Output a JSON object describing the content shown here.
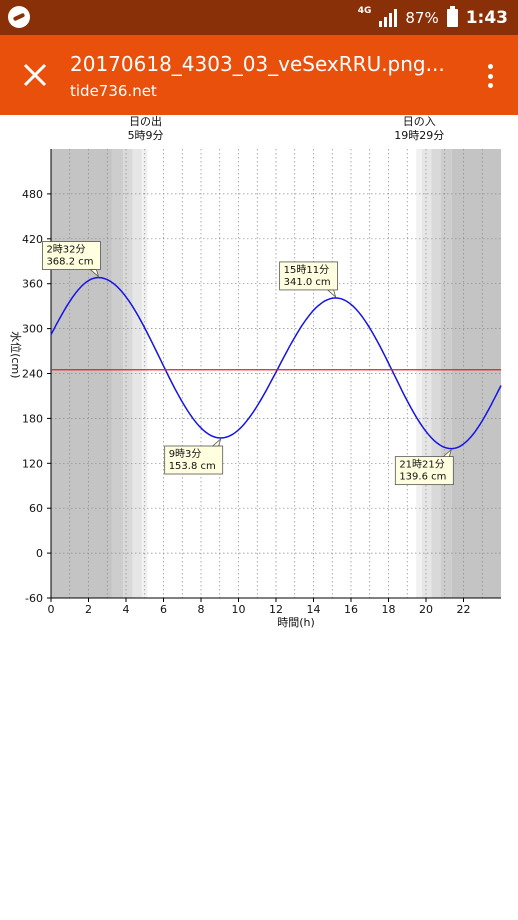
{
  "statusbar": {
    "network": "4G",
    "battery": "87%",
    "time": "1:43"
  },
  "appbar": {
    "title": "20170618_4303_03_veSexRRU.png...",
    "subtitle": "tide736.net"
  },
  "icons": {
    "close": "close-icon",
    "menu": "more-vert-icon",
    "app": "app-logo-icon",
    "battery": "battery-icon",
    "signal": "signal-icon"
  },
  "chart_data": {
    "type": "line",
    "xlabel": "時間(h)",
    "ylabel": "水位(cm)",
    "xlim": [
      0,
      24
    ],
    "ylim": [
      -60,
      540
    ],
    "xticks": [
      0,
      2,
      4,
      6,
      8,
      10,
      12,
      14,
      16,
      18,
      20,
      22
    ],
    "yticks": [
      -60,
      0,
      60,
      120,
      180,
      240,
      300,
      360,
      420,
      480
    ],
    "grid": true,
    "sunrise": {
      "label": "日の出",
      "time": "5時9分",
      "hour": 5.15
    },
    "sunset": {
      "label": "日の入",
      "time": "19時29分",
      "hour": 19.48
    },
    "reference_level": 245,
    "series": [
      {
        "color": "#1414e6",
        "x": [
          0,
          2.53,
          9.05,
          15.18,
          21.35,
          24
        ],
        "y": [
          292,
          368.2,
          153.8,
          341.0,
          139.6,
          224
        ]
      }
    ],
    "annotations": [
      {
        "time": "2時32分",
        "value": "368.2 cm",
        "x": 2.53,
        "y": 368.2,
        "side": "above"
      },
      {
        "time": "9時3分",
        "value": "153.8 cm",
        "x": 9.05,
        "y": 153.8,
        "side": "below"
      },
      {
        "time": "15時11分",
        "value": "341.0 cm",
        "x": 15.18,
        "y": 341.0,
        "side": "above"
      },
      {
        "time": "21時21分",
        "value": "139.6 cm",
        "x": 21.35,
        "y": 139.6,
        "side": "below"
      }
    ],
    "colors": {
      "night": "#c4c4c4",
      "twilight": [
        "#cdcdcd",
        "#d9d9d9",
        "#e6e6e6",
        "#f1f1f1"
      ],
      "day": "#ffffff",
      "curve": "#1414e6",
      "reference": "#e02020",
      "label_bg": "#ffffe0"
    }
  }
}
